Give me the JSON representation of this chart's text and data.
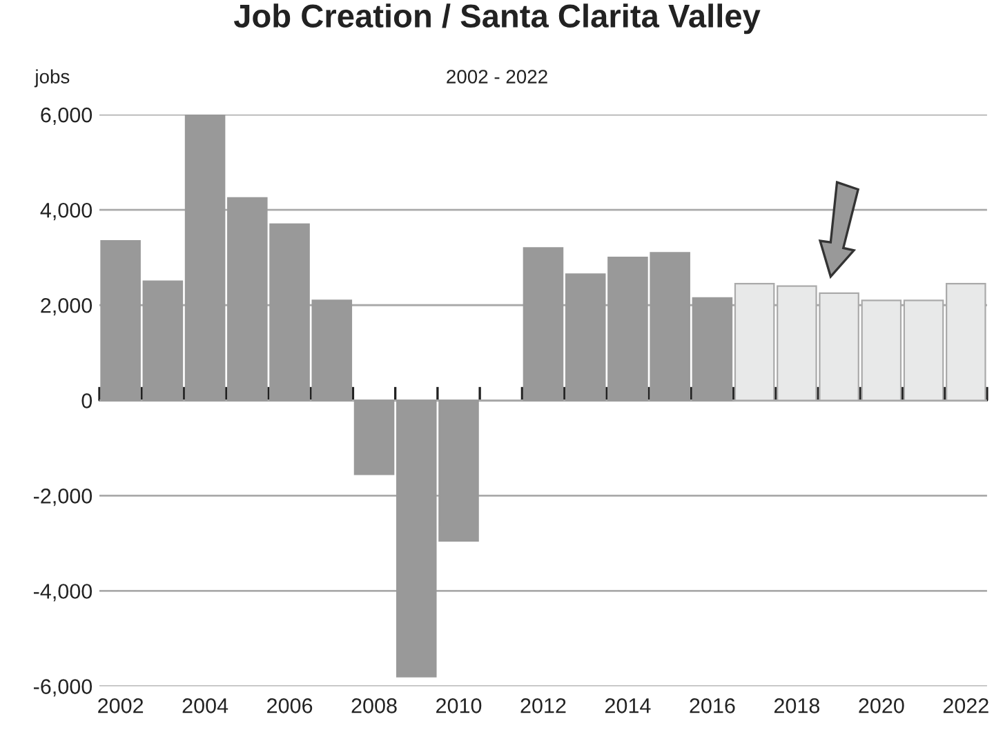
{
  "chart_data": {
    "type": "bar",
    "title": "Job Creation / Santa Clarita Valley",
    "subtitle": "2002 - 2022",
    "ylabel": "jobs",
    "categories": [
      "2002",
      null,
      "2004",
      null,
      "2006",
      null,
      "2008",
      null,
      "2010",
      null,
      "2012",
      null,
      "2014",
      null,
      "2016",
      null,
      "2018",
      null,
      "2020",
      null,
      "2022"
    ],
    "values": [
      3350,
      2500,
      6000,
      4250,
      3700,
      2100,
      -1550,
      -5800,
      -2950,
      null,
      3200,
      2650,
      3000,
      3100,
      2150,
      2450,
      2400,
      2250,
      2100,
      2100,
      2450
    ],
    "colors": [
      "#999999",
      "#999999",
      "#999999",
      "#999999",
      "#999999",
      "#999999",
      "#999999",
      "#999999",
      "#999999",
      "#999999",
      "#999999",
      "#999999",
      "#999999",
      "#999999",
      "#999999",
      "#e8e9e9",
      "#e8e9e9",
      "#e8e9e9",
      "#e8e9e9",
      "#e8e9e9",
      "#e8e9e9"
    ],
    "ylim": [
      -6000,
      6000
    ],
    "yticks": [
      {
        "value": -6000,
        "label": "-6,000"
      },
      {
        "value": -4000,
        "label": "-4,000"
      },
      {
        "value": -2000,
        "label": "-2,000"
      },
      0,
      {
        "value": 2000,
        "label": "2,000"
      },
      {
        "value": 4000,
        "label": "4,000"
      },
      {
        "value": 6000,
        "label": "6,000"
      }
    ],
    "grid": "y",
    "legend": false
  }
}
